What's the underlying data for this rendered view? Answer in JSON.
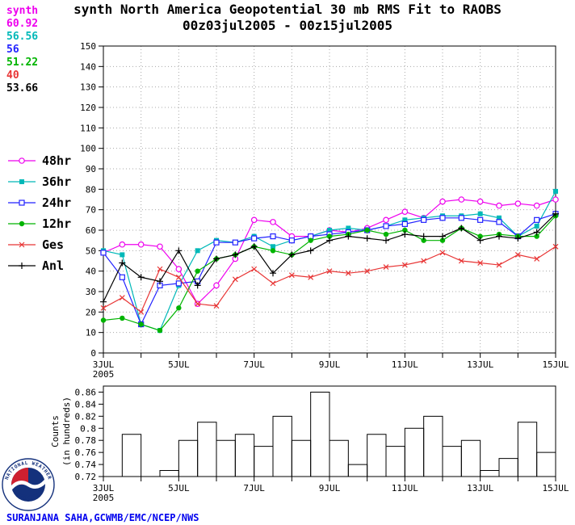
{
  "header": {
    "title_line1": "synth North America Geopotential 30 mb RMS Fit to RAOBS",
    "title_line2": "00z03jul2005 - 00z15jul2005"
  },
  "stats_panel": {
    "label": "synth",
    "label_color": "#ee00ee",
    "values": [
      {
        "text": "60.92",
        "color": "#ee00ee"
      },
      {
        "text": "56.56",
        "color": "#00b8b8"
      },
      {
        "text": "56",
        "color": "#2222ff"
      },
      {
        "text": "51.22",
        "color": "#00b400"
      },
      {
        "text": "40",
        "color": "#e83535"
      },
      {
        "text": "53.66",
        "color": "#000000"
      }
    ]
  },
  "legend": {
    "entries": [
      {
        "label": "48hr",
        "color": "#ee00ee",
        "marker": "open-circle"
      },
      {
        "label": "36hr",
        "color": "#00b8b8",
        "marker": "filled-square"
      },
      {
        "label": "24hr",
        "color": "#2222ff",
        "marker": "open-square"
      },
      {
        "label": "12hr",
        "color": "#00b400",
        "marker": "filled-circle"
      },
      {
        "label": "Ges",
        "color": "#e83535",
        "marker": "x"
      },
      {
        "label": "Anl",
        "color": "#000000",
        "marker": "plus"
      }
    ]
  },
  "logo": {
    "text_top": "NATIONAL WEATHER",
    "text_bottom": "SERVICE"
  },
  "credit": "SURANJANA SAHA,GCWMB/EMC/NCEP/NWS",
  "chart_data": [
    {
      "type": "line",
      "title": "synth North America Geopotential 30 mb RMS Fit to RAOBS",
      "subtitle": "00z03jul2005 - 00z15jul2005",
      "x_start": "00z03jul2005",
      "x_end": "00z15jul2005",
      "x_step_hours": 12,
      "x_tick_labels": [
        "3JUL",
        "5JUL",
        "7JUL",
        "9JUL",
        "11JUL",
        "13JUL",
        "15JUL"
      ],
      "x_sub_label": "2005",
      "ylim": [
        0,
        150
      ],
      "ytick_step": 10,
      "grid": "dotted",
      "legend_position": "left",
      "series": [
        {
          "name": "48hr",
          "color": "#ee00ee",
          "marker": "open-circle",
          "values": [
            49,
            53,
            53,
            52,
            41,
            24,
            33,
            46,
            65,
            64,
            57,
            57,
            60,
            59,
            61,
            65,
            69,
            66,
            74,
            75,
            74,
            72,
            73,
            72,
            75
          ]
        },
        {
          "name": "36hr",
          "color": "#00b8b8",
          "marker": "filled-square",
          "values": [
            50,
            48,
            14,
            11,
            33,
            50,
            55,
            54,
            57,
            52,
            55,
            57,
            60,
            61,
            60,
            62,
            65,
            66,
            67,
            67,
            68,
            66,
            57,
            62,
            79
          ]
        },
        {
          "name": "24hr",
          "color": "#2222ff",
          "marker": "open-square",
          "values": [
            49,
            37,
            14,
            33,
            34,
            35,
            54,
            54,
            56,
            57,
            55,
            57,
            58,
            59,
            60,
            62,
            63,
            65,
            66,
            66,
            65,
            64,
            57,
            65,
            68
          ]
        },
        {
          "name": "12hr",
          "color": "#00b400",
          "marker": "filled-circle",
          "values": [
            16,
            17,
            14,
            11,
            22,
            40,
            46,
            48,
            52,
            50,
            48,
            55,
            57,
            58,
            60,
            58,
            60,
            55,
            55,
            61,
            57,
            58,
            57,
            57,
            67
          ]
        },
        {
          "name": "Ges",
          "color": "#e83535",
          "marker": "x",
          "values": [
            22,
            27,
            20,
            41,
            37,
            24,
            23,
            36,
            41,
            34,
            38,
            37,
            40,
            39,
            40,
            42,
            43,
            45,
            49,
            45,
            44,
            43,
            48,
            46,
            52
          ]
        },
        {
          "name": "Anl",
          "color": "#000000",
          "marker": "plus",
          "values": [
            25,
            44,
            37,
            35,
            50,
            33,
            46,
            48,
            52,
            39,
            48,
            50,
            55,
            57,
            56,
            55,
            58,
            57,
            57,
            61,
            55,
            57,
            56,
            59,
            68
          ]
        }
      ]
    },
    {
      "type": "bar",
      "ylabel": "Counts (in hundreds)",
      "ylabel_lines": [
        "Counts",
        "(in hundreds)"
      ],
      "ylim": [
        0.72,
        0.87
      ],
      "yticks": [
        0.72,
        0.74,
        0.76,
        0.78,
        0.8,
        0.82,
        0.84,
        0.86
      ],
      "ytick_labels": [
        "0.72",
        "0.74",
        "0.76",
        "0.78",
        "0.8",
        "0.82",
        "0.84",
        "0.86"
      ],
      "x_tick_labels": [
        "3JUL",
        "5JUL",
        "7JUL",
        "9JUL",
        "11JUL",
        "13JUL",
        "15JUL"
      ],
      "x_sub_label": "2005",
      "x_step_hours": 12,
      "values": [
        0.72,
        0.79,
        0.72,
        0.73,
        0.78,
        0.81,
        0.78,
        0.79,
        0.77,
        0.82,
        0.78,
        0.86,
        0.78,
        0.74,
        0.79,
        0.77,
        0.8,
        0.82,
        0.77,
        0.78,
        0.73,
        0.75,
        0.81,
        0.76
      ]
    }
  ]
}
